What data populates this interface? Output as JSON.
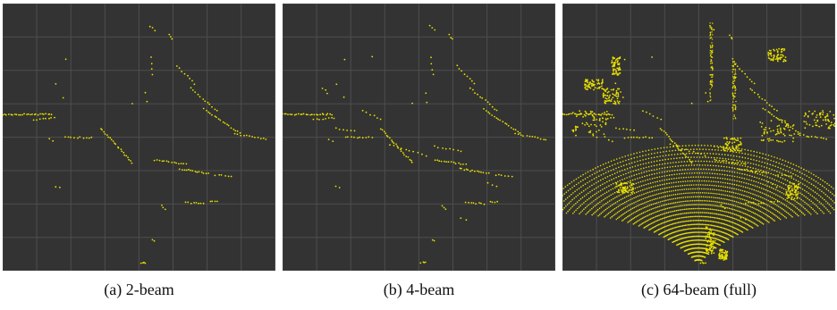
{
  "panels": [
    {
      "id": "a",
      "caption": "(a) 2-beam",
      "beams": 2
    },
    {
      "id": "b",
      "caption": "(b) 4-beam",
      "beams": 4
    },
    {
      "id": "c",
      "caption": "(c) 64-beam (full)",
      "beams": 64
    }
  ],
  "colors": {
    "background": "#333333",
    "grid": "#4e4e4e",
    "points": "#e8e000"
  }
}
